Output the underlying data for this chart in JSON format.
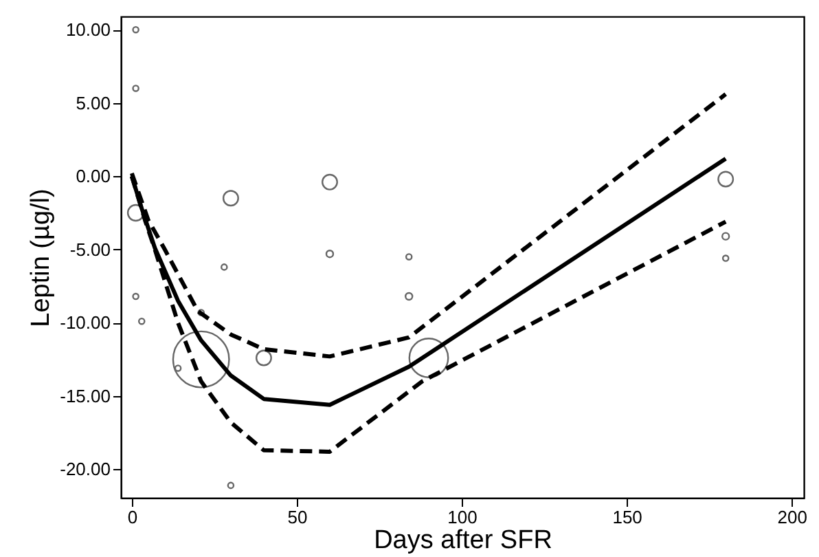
{
  "chart_data": {
    "type": "bubble",
    "xlabel": "Days after SFR",
    "ylabel": "Leptin (µg/l)",
    "xlim": [
      -3.3,
      203.7
    ],
    "ylim": [
      -21.95,
      10.9
    ],
    "xticks": [
      0,
      50,
      100,
      150,
      200
    ],
    "yticks": [
      {
        "value": -20,
        "label": "-20.00"
      },
      {
        "value": -15,
        "label": "-15.00"
      },
      {
        "value": -10,
        "label": "-10.00"
      },
      {
        "value": -5,
        "label": "-5.00"
      },
      {
        "value": 0,
        "label": "0.00"
      },
      {
        "value": 5,
        "label": "5.00"
      },
      {
        "value": 10,
        "label": "10.00"
      }
    ],
    "grid": false,
    "series": [
      {
        "color": "#666666",
        "marker": "circle",
        "x": [
          1.2,
          1.2,
          1.2,
          30,
          60,
          180,
          28,
          60,
          84,
          84,
          1.2,
          3,
          180,
          180,
          30,
          14,
          21,
          21,
          40,
          90
        ],
        "values": [
          10,
          6,
          -2.5,
          -1.5,
          -0.4,
          -0.2,
          -6.2,
          -5.3,
          -5.5,
          -8.2,
          -8.2,
          -9.9,
          -4.1,
          -5.6,
          -21.1,
          -13.1,
          -9.3,
          -12.5,
          -12.4,
          -12.4
        ],
        "sizes": [
          0.01,
          0.01,
          0.08,
          0.07,
          0.07,
          0.07,
          0.01,
          0.015,
          0.01,
          0.015,
          0.01,
          0.01,
          0.015,
          0.01,
          0.01,
          0.01,
          0.01,
          1,
          0.07,
          0.48
        ]
      },
      {
        "type": "line",
        "color": "#000000",
        "line_style": "solid",
        "x": [
          0,
          3,
          7,
          14,
          21,
          30,
          40,
          60,
          84,
          180
        ],
        "values": [
          0,
          -2.2,
          -4.9,
          -8.5,
          -11.2,
          -13.6,
          -15.2,
          -15.6,
          -13,
          1.2
        ]
      },
      {
        "type": "line",
        "color": "#000000",
        "line_style": "dashed",
        "x": [
          0,
          5,
          10,
          20,
          30,
          40,
          60,
          84,
          180
        ],
        "values": [
          0.2,
          -3,
          -5,
          -9.2,
          -10.8,
          -11.8,
          -12.3,
          -11,
          5.6
        ]
      },
      {
        "type": "line",
        "color": "#000000",
        "line_style": "dashed",
        "x": [
          0,
          4,
          7,
          14,
          21,
          30,
          40,
          60,
          88,
          180
        ],
        "values": [
          0,
          -3,
          -5,
          -10,
          -14,
          -16.8,
          -18.7,
          -18.8,
          -14,
          -3.1
        ]
      }
    ]
  }
}
